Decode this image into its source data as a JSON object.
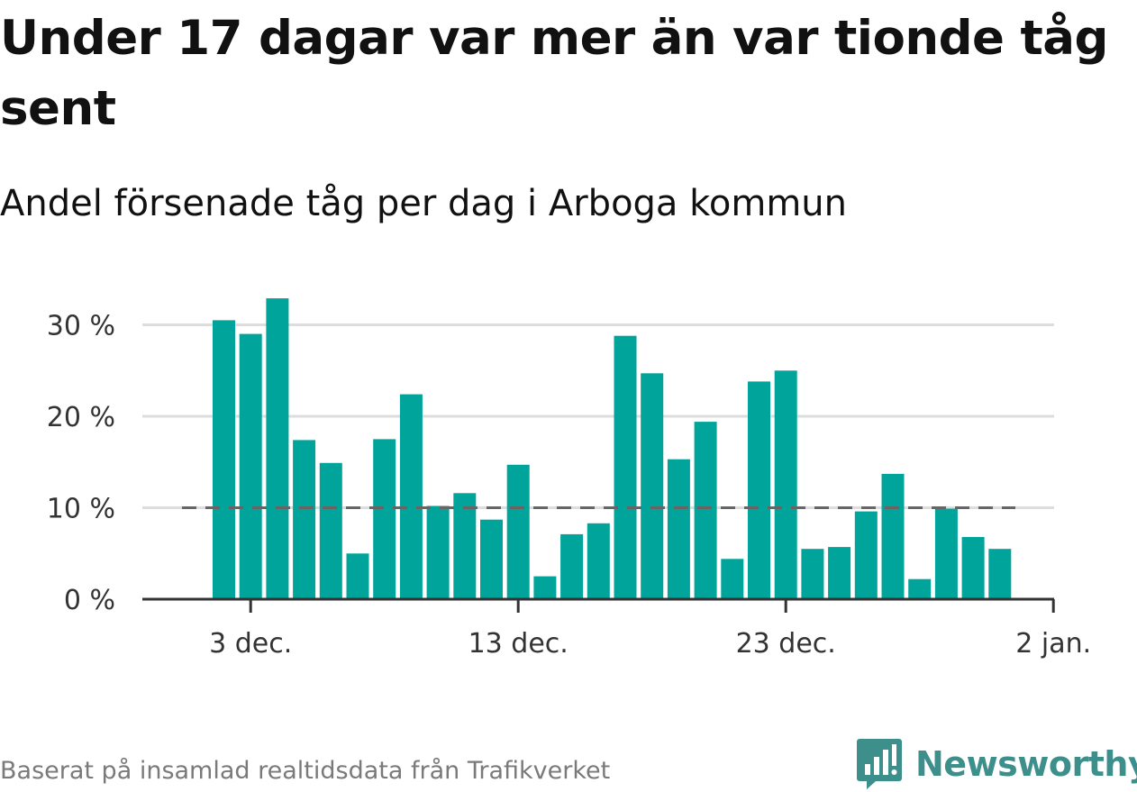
{
  "header": {
    "title": "Under 17 dagar var mer än var tionde tåg sent",
    "subtitle": "Andel försenade tåg per dag i Arboga kommun"
  },
  "footer": {
    "source": "Baserat på insamlad realtidsdata från Trafikverket",
    "brand": "Newsworthy"
  },
  "colors": {
    "bar": "#00a49a",
    "reference_line": "#666666",
    "grid": "#dddddd",
    "axis": "#333333",
    "brand": "#3d8f8c"
  },
  "icons": {
    "brand_logo": "bar-chart-speech-bubble-icon"
  },
  "chart_data": {
    "type": "bar",
    "title": "Under 17 dagar var mer än var tionde tåg sent",
    "subtitle": "Andel försenade tåg per dag i Arboga kommun",
    "xlabel": "",
    "ylabel": "",
    "x_start": "2023-12-02",
    "x_range": [
      "2023-12-02",
      "2024-01-02"
    ],
    "x_ticks": [
      {
        "date": "2023-12-03",
        "label": "3 dec."
      },
      {
        "date": "2023-12-13",
        "label": "13 dec."
      },
      {
        "date": "2023-12-23",
        "label": "23 dec."
      },
      {
        "date": "2024-01-02",
        "label": "2 jan."
      }
    ],
    "ylim": [
      0,
      33
    ],
    "y_ticks": [
      {
        "value": 0,
        "label": "0 %"
      },
      {
        "value": 10,
        "label": "10 %"
      },
      {
        "value": 20,
        "label": "20 %"
      },
      {
        "value": 30,
        "label": "30 %"
      }
    ],
    "reference_line": {
      "value": 10,
      "style": "dashed"
    },
    "grid": true,
    "dates": [
      "2023-12-02",
      "2023-12-03",
      "2023-12-04",
      "2023-12-05",
      "2023-12-06",
      "2023-12-07",
      "2023-12-08",
      "2023-12-09",
      "2023-12-10",
      "2023-12-11",
      "2023-12-12",
      "2023-12-13",
      "2023-12-14",
      "2023-12-15",
      "2023-12-16",
      "2023-12-17",
      "2023-12-18",
      "2023-12-19",
      "2023-12-20",
      "2023-12-21",
      "2023-12-22",
      "2023-12-23",
      "2023-12-24",
      "2023-12-25",
      "2023-12-26",
      "2023-12-27",
      "2023-12-28",
      "2023-12-29",
      "2023-12-30",
      "2023-12-31"
    ],
    "values": [
      30.5,
      29.0,
      32.9,
      17.4,
      14.9,
      5.0,
      17.5,
      22.4,
      10.2,
      11.6,
      8.7,
      14.7,
      2.5,
      7.1,
      8.3,
      28.8,
      24.7,
      15.3,
      19.4,
      4.4,
      23.8,
      25.0,
      5.5,
      5.7,
      9.6,
      13.7,
      2.2,
      9.9,
      6.8,
      5.5
    ]
  }
}
